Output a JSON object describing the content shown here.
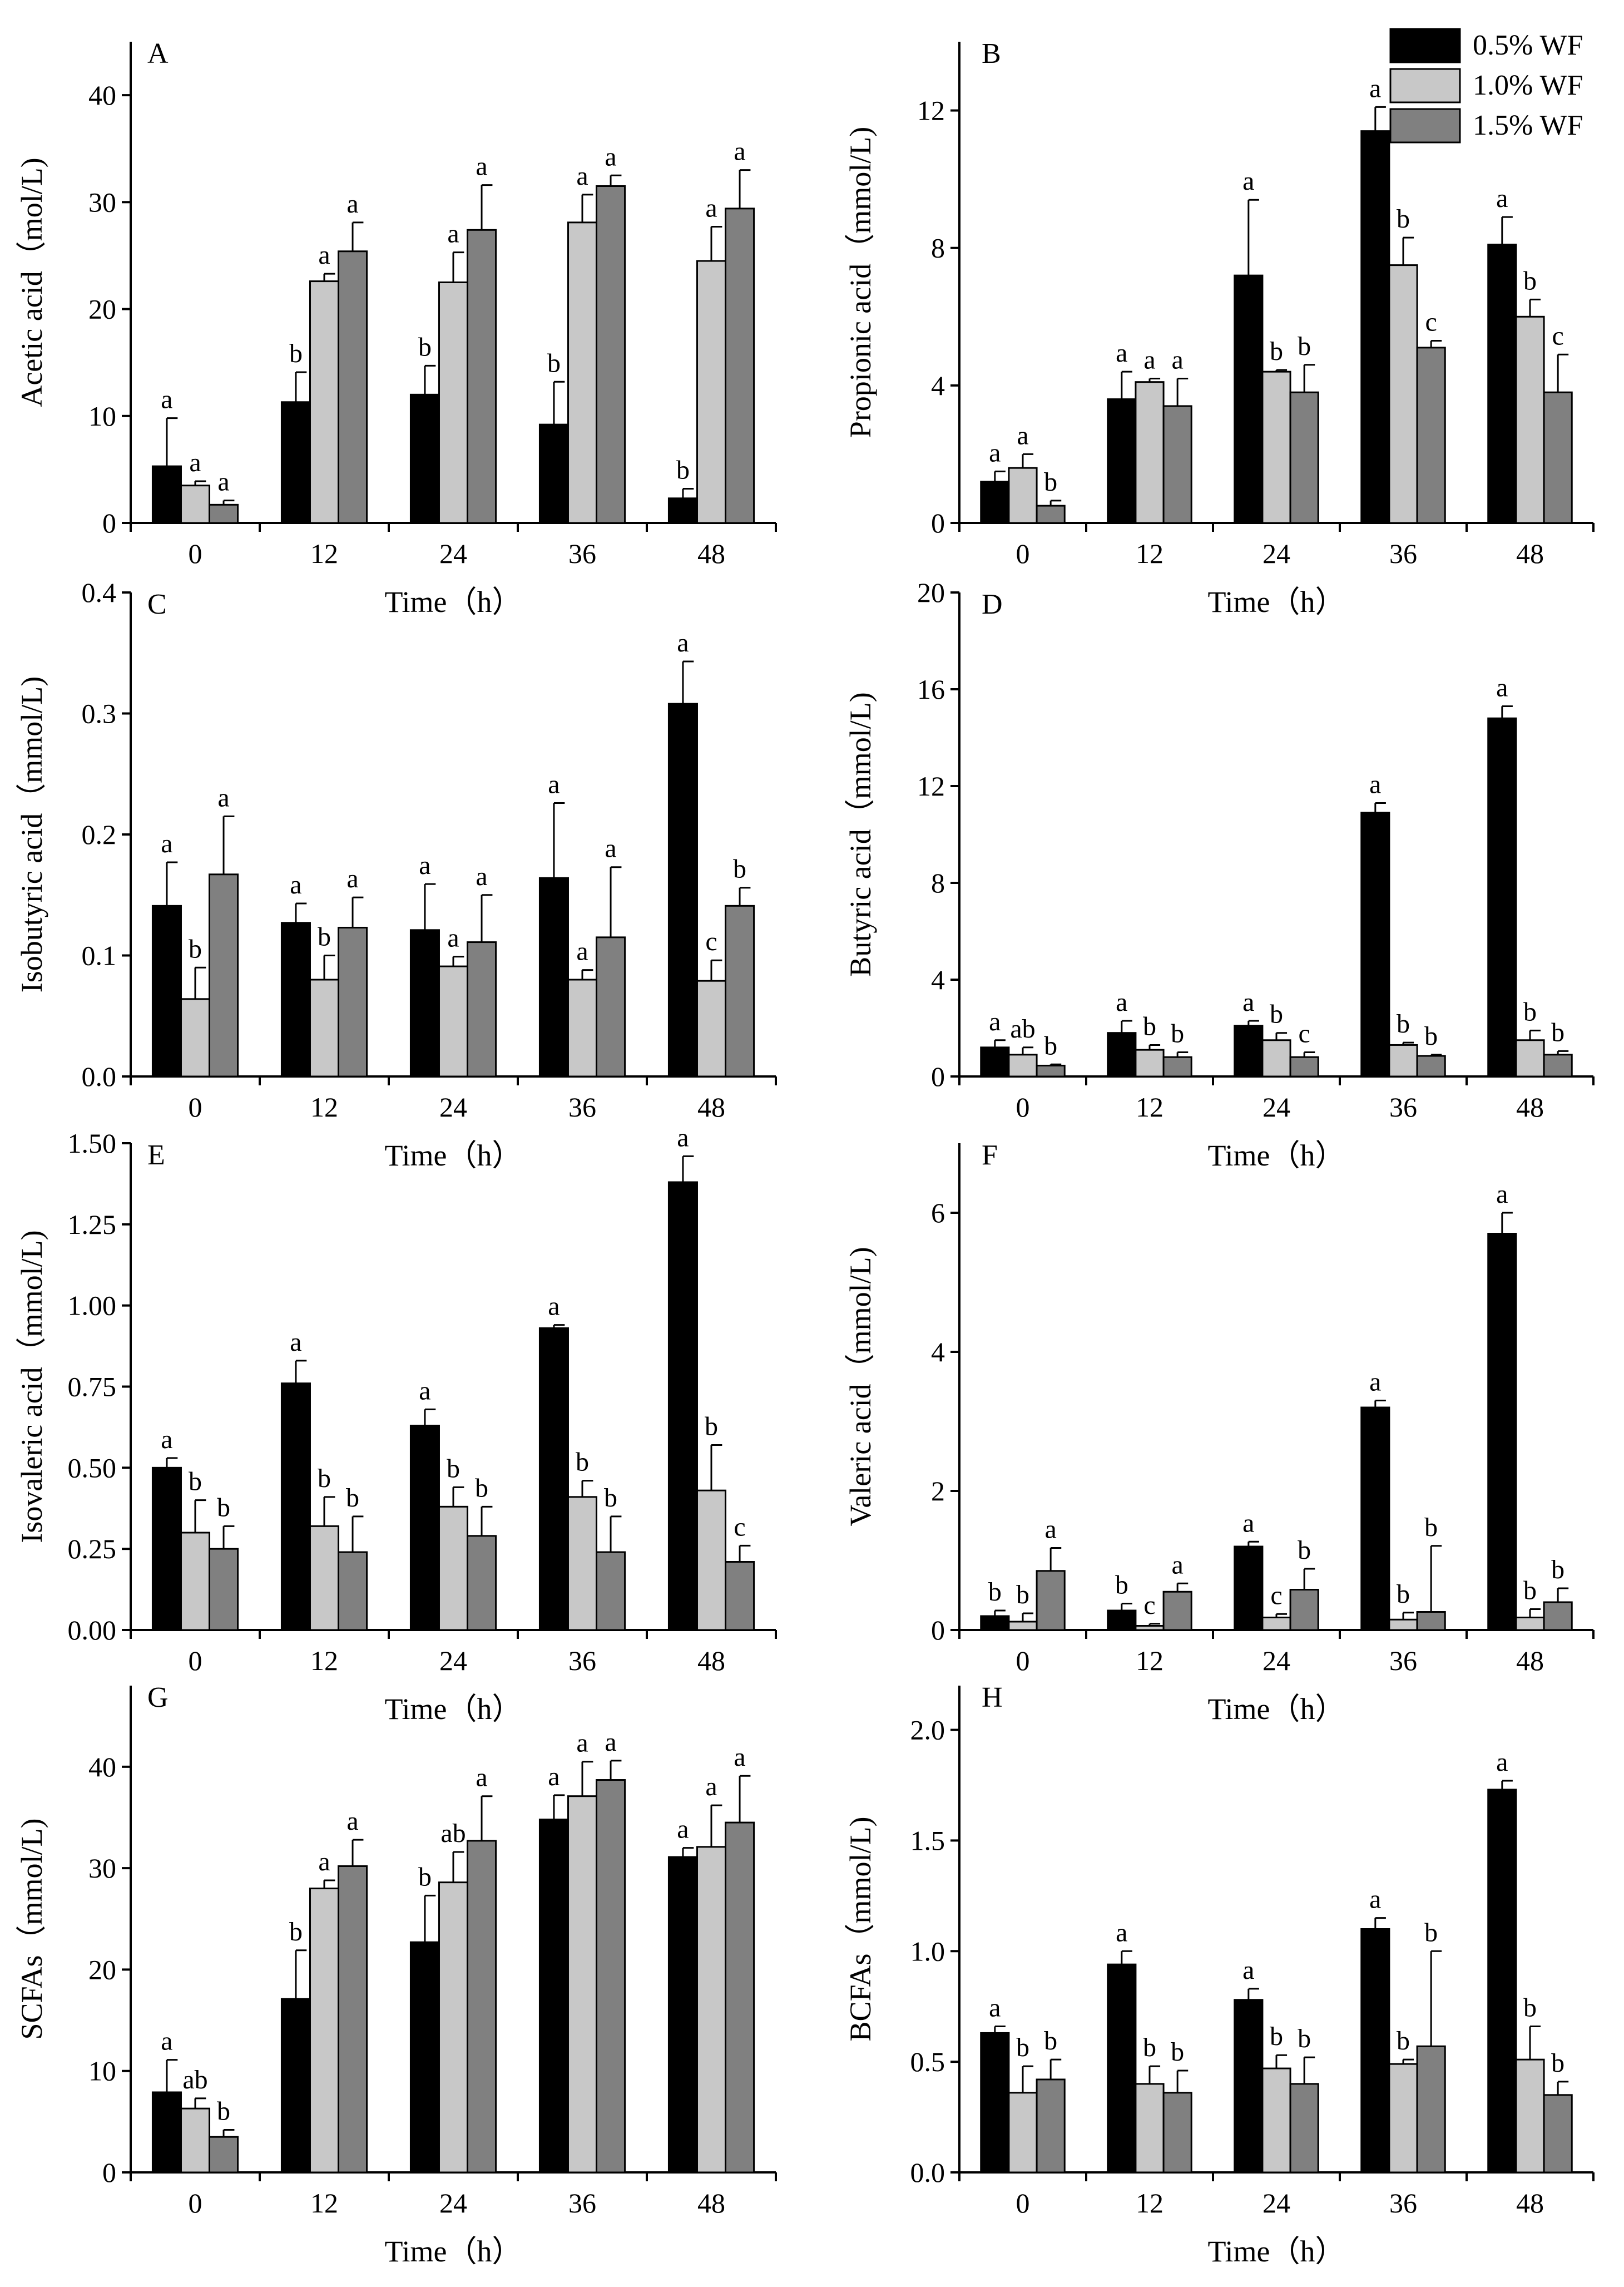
{
  "legend": {
    "entries": [
      {
        "label": "0.5% WF",
        "color": "#000000"
      },
      {
        "label": "1.0% WF",
        "color": "#c8c8c8"
      },
      {
        "label": "1.5% WF",
        "color": "#808080"
      }
    ]
  },
  "chart_data": [
    {
      "panel": "A",
      "type": "bar",
      "title": "",
      "xlabel": "Time（h）",
      "ylabel": "Acetic acid（mol/L)",
      "categories": [
        "0",
        "12",
        "24",
        "36",
        "48"
      ],
      "ylim": [
        0,
        45
      ],
      "yticks": [
        0,
        10,
        20,
        30,
        40
      ],
      "ytick_labels": [
        "0",
        "10",
        "20",
        "30",
        "40"
      ],
      "series": [
        {
          "name": "0.5% WF",
          "values": [
            5.3,
            11.3,
            12.0,
            9.2,
            2.3
          ],
          "errors": [
            4.5,
            2.8,
            2.7,
            4.0,
            0.9
          ],
          "sig": [
            "a",
            "b",
            "b",
            "b",
            "b"
          ]
        },
        {
          "name": "1.0% WF",
          "values": [
            3.5,
            22.6,
            22.5,
            28.1,
            24.5
          ],
          "errors": [
            0.4,
            0.7,
            2.8,
            2.6,
            3.2
          ],
          "sig": [
            "a",
            "a",
            "a",
            "a",
            "a"
          ]
        },
        {
          "name": "1.5% WF",
          "values": [
            1.7,
            25.4,
            27.4,
            31.5,
            29.4
          ],
          "errors": [
            0.4,
            2.7,
            4.2,
            1.0,
            3.6
          ],
          "sig": [
            "a",
            "a",
            "a",
            "a",
            "a"
          ]
        }
      ]
    },
    {
      "panel": "B",
      "type": "bar",
      "title": "",
      "xlabel": "Time（h）",
      "ylabel": "Propionic acid（mmol/L)",
      "categories": [
        "0",
        "12",
        "24",
        "36",
        "48"
      ],
      "ylim": [
        0,
        14
      ],
      "yticks": [
        0,
        4,
        8,
        12
      ],
      "ytick_labels": [
        "0",
        "4",
        "8",
        "12"
      ],
      "series": [
        {
          "name": "0.5% WF",
          "values": [
            1.2,
            3.6,
            7.2,
            11.4,
            8.1
          ],
          "errors": [
            0.3,
            0.8,
            2.2,
            0.7,
            0.8
          ],
          "sig": [
            "a",
            "a",
            "a",
            "a",
            "a"
          ]
        },
        {
          "name": "1.0% WF",
          "values": [
            1.6,
            4.1,
            4.4,
            7.5,
            6.0
          ],
          "errors": [
            0.4,
            0.1,
            0.05,
            0.8,
            0.5
          ],
          "sig": [
            "a",
            "a",
            "b",
            "b",
            "b"
          ]
        },
        {
          "name": "1.5% WF",
          "values": [
            0.5,
            3.4,
            3.8,
            5.1,
            3.8
          ],
          "errors": [
            0.15,
            0.8,
            0.8,
            0.2,
            1.1
          ],
          "sig": [
            "b",
            "a",
            "b",
            "c",
            "c"
          ]
        }
      ]
    },
    {
      "panel": "C",
      "type": "bar",
      "title": "",
      "xlabel": "Time（h）",
      "ylabel": "Isobutyric acid（mmol/L)",
      "categories": [
        "0",
        "12",
        "24",
        "36",
        "48"
      ],
      "ylim": [
        0,
        0.4
      ],
      "yticks": [
        0,
        0.1,
        0.2,
        0.3,
        0.4
      ],
      "ytick_labels": [
        "0.0",
        "0.1",
        "0.2",
        "0.3",
        "0.4"
      ],
      "series": [
        {
          "name": "0.5% WF",
          "values": [
            0.141,
            0.127,
            0.121,
            0.164,
            0.308
          ],
          "errors": [
            0.036,
            0.016,
            0.038,
            0.062,
            0.035
          ],
          "sig": [
            "a",
            "a",
            "a",
            "a",
            "a"
          ]
        },
        {
          "name": "1.0% WF",
          "values": [
            0.064,
            0.08,
            0.091,
            0.08,
            0.079
          ],
          "errors": [
            0.026,
            0.02,
            0.008,
            0.008,
            0.017
          ],
          "sig": [
            "b",
            "b",
            "a",
            "a",
            "c"
          ]
        },
        {
          "name": "1.5% WF",
          "values": [
            0.167,
            0.123,
            0.111,
            0.115,
            0.141
          ],
          "errors": [
            0.048,
            0.025,
            0.039,
            0.058,
            0.015
          ],
          "sig": [
            "a",
            "a",
            "a",
            "a",
            "b"
          ]
        }
      ]
    },
    {
      "panel": "D",
      "type": "bar",
      "title": "",
      "xlabel": "Time（h）",
      "ylabel": "Butyric acid（mmol/L)",
      "categories": [
        "0",
        "12",
        "24",
        "36",
        "48"
      ],
      "ylim": [
        0,
        20
      ],
      "yticks": [
        0,
        4,
        8,
        12,
        16,
        20
      ],
      "ytick_labels": [
        "0",
        "4",
        "8",
        "12",
        "16",
        "20"
      ],
      "series": [
        {
          "name": "0.5% WF",
          "values": [
            1.2,
            1.8,
            2.1,
            10.9,
            14.8
          ],
          "errors": [
            0.3,
            0.5,
            0.2,
            0.4,
            0.5
          ],
          "sig": [
            "a",
            "a",
            "a",
            "a",
            "a"
          ]
        },
        {
          "name": "1.0% WF",
          "values": [
            0.9,
            1.1,
            1.5,
            1.3,
            1.5
          ],
          "errors": [
            0.3,
            0.2,
            0.3,
            0.1,
            0.4
          ],
          "sig": [
            "ab",
            "b",
            "b",
            "b",
            "b"
          ]
        },
        {
          "name": "1.5% WF",
          "values": [
            0.45,
            0.8,
            0.8,
            0.85,
            0.9
          ],
          "errors": [
            0.05,
            0.2,
            0.2,
            0.05,
            0.15
          ],
          "sig": [
            "b",
            "b",
            "c",
            "b",
            "b"
          ]
        }
      ]
    },
    {
      "panel": "E",
      "type": "bar",
      "title": "",
      "xlabel": "Time（h）",
      "ylabel": "Isovaleric acid（mmol/L)",
      "categories": [
        "0",
        "12",
        "24",
        "36",
        "48"
      ],
      "ylim": [
        0,
        1.5
      ],
      "yticks": [
        0,
        0.25,
        0.5,
        0.75,
        1.0,
        1.25,
        1.5
      ],
      "ytick_labels": [
        "0.00",
        "0.25",
        "0.50",
        "0.75",
        "1.00",
        "1.25",
        "1.50"
      ],
      "series": [
        {
          "name": "0.5% WF",
          "values": [
            0.5,
            0.76,
            0.63,
            0.93,
            1.38
          ],
          "errors": [
            0.03,
            0.07,
            0.05,
            0.01,
            0.08
          ],
          "sig": [
            "a",
            "a",
            "a",
            "a",
            "a"
          ]
        },
        {
          "name": "1.0% WF",
          "values": [
            0.3,
            0.32,
            0.38,
            0.41,
            0.43
          ],
          "errors": [
            0.1,
            0.09,
            0.06,
            0.05,
            0.14
          ],
          "sig": [
            "b",
            "b",
            "b",
            "b",
            "b"
          ]
        },
        {
          "name": "1.5% WF",
          "values": [
            0.25,
            0.24,
            0.29,
            0.24,
            0.21
          ],
          "errors": [
            0.07,
            0.11,
            0.09,
            0.11,
            0.05
          ],
          "sig": [
            "b",
            "b",
            "b",
            "b",
            "c"
          ]
        }
      ]
    },
    {
      "panel": "F",
      "type": "bar",
      "title": "",
      "xlabel": "Time（h）",
      "ylabel": "Valeric acid（mmol/L)",
      "categories": [
        "0",
        "12",
        "24",
        "36",
        "48"
      ],
      "ylim": [
        0,
        7
      ],
      "yticks": [
        0,
        2,
        4,
        6
      ],
      "ytick_labels": [
        "0",
        "2",
        "4",
        "6"
      ],
      "series": [
        {
          "name": "0.5% WF",
          "values": [
            0.2,
            0.28,
            1.2,
            3.2,
            5.7
          ],
          "errors": [
            0.08,
            0.1,
            0.07,
            0.1,
            0.3
          ],
          "sig": [
            "b",
            "b",
            "a",
            "a",
            "a"
          ]
        },
        {
          "name": "1.0% WF",
          "values": [
            0.12,
            0.06,
            0.18,
            0.15,
            0.18
          ],
          "errors": [
            0.12,
            0.03,
            0.05,
            0.1,
            0.12
          ],
          "sig": [
            "b",
            "c",
            "c",
            "b",
            "b"
          ]
        },
        {
          "name": "1.5% WF",
          "values": [
            0.85,
            0.55,
            0.58,
            0.26,
            0.4
          ],
          "errors": [
            0.33,
            0.12,
            0.3,
            0.95,
            0.2
          ],
          "sig": [
            "a",
            "a",
            "b",
            "b",
            "b"
          ]
        }
      ]
    },
    {
      "panel": "G",
      "type": "bar",
      "title": "",
      "xlabel": "Time（h）",
      "ylabel": "SCFAs（mmol/L)",
      "categories": [
        "0",
        "12",
        "24",
        "36",
        "48"
      ],
      "ylim": [
        0,
        48
      ],
      "yticks": [
        0,
        10,
        20,
        30,
        40
      ],
      "ytick_labels": [
        "0",
        "10",
        "20",
        "30",
        "40"
      ],
      "series": [
        {
          "name": "0.5% WF",
          "values": [
            7.9,
            17.1,
            22.7,
            34.8,
            31.1
          ],
          "errors": [
            3.2,
            4.8,
            4.6,
            2.4,
            0.9
          ],
          "sig": [
            "a",
            "b",
            "b",
            "a",
            "a"
          ]
        },
        {
          "name": "1.0% WF",
          "values": [
            6.3,
            28.0,
            28.6,
            37.1,
            32.1
          ],
          "errors": [
            1.0,
            0.8,
            3.0,
            3.4,
            4.1
          ],
          "sig": [
            "ab",
            "a",
            "ab",
            "a",
            "a"
          ]
        },
        {
          "name": "1.5% WF",
          "values": [
            3.5,
            30.2,
            32.7,
            38.7,
            34.5
          ],
          "errors": [
            0.7,
            2.6,
            4.4,
            1.9,
            4.6
          ],
          "sig": [
            "b",
            "a",
            "a",
            "a",
            "a"
          ]
        }
      ]
    },
    {
      "panel": "H",
      "type": "bar",
      "title": "",
      "xlabel": "Time（h）",
      "ylabel": "BCFAs（mmol/L)",
      "categories": [
        "0",
        "12",
        "24",
        "36",
        "48"
      ],
      "ylim": [
        0,
        2.2
      ],
      "yticks": [
        0,
        0.5,
        1.0,
        1.5,
        2.0
      ],
      "ytick_labels": [
        "0.0",
        "0.5",
        "1.0",
        "1.5",
        "2.0"
      ],
      "series": [
        {
          "name": "0.5% WF",
          "values": [
            0.63,
            0.94,
            0.78,
            1.1,
            1.73
          ],
          "errors": [
            0.03,
            0.06,
            0.05,
            0.05,
            0.04
          ],
          "sig": [
            "a",
            "a",
            "a",
            "a",
            "a"
          ]
        },
        {
          "name": "1.0% WF",
          "values": [
            0.36,
            0.4,
            0.47,
            0.49,
            0.51
          ],
          "errors": [
            0.12,
            0.08,
            0.06,
            0.02,
            0.15
          ],
          "sig": [
            "b",
            "b",
            "b",
            "b",
            "b"
          ]
        },
        {
          "name": "1.5% WF",
          "values": [
            0.42,
            0.36,
            0.4,
            0.57,
            0.35
          ],
          "errors": [
            0.09,
            0.1,
            0.12,
            0.43,
            0.06
          ],
          "sig": [
            "b",
            "b",
            "b",
            "b",
            "b"
          ]
        }
      ]
    }
  ]
}
